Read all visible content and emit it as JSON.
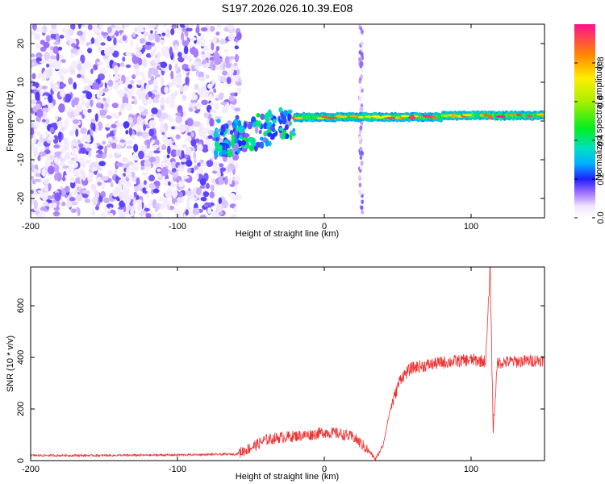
{
  "title": "S197.2026.026.10.39.E08",
  "chart_data": [
    {
      "type": "heatmap",
      "xlabel": "Height of straight line (km)",
      "ylabel": "Frequency (Hz)",
      "xlim": [
        -200,
        150
      ],
      "ylim": [
        -25,
        25
      ],
      "xticks": [
        -200,
        -100,
        0,
        100
      ],
      "yticks": [
        -20,
        -10,
        0,
        10,
        20
      ],
      "colorbar": {
        "label": "Normalized spectral amplitude",
        "range": [
          0,
          1
        ],
        "ticks": [
          0.0,
          0.2,
          0.4,
          0.6,
          0.8
        ]
      },
      "regions": [
        {
          "name": "noise",
          "x_range": [
            -200,
            -58
          ],
          "freq_range": [
            -25,
            25
          ],
          "amplitude": 0.1
        },
        {
          "name": "transition",
          "x_range": [
            -75,
            -20
          ],
          "freq_range": [
            -10,
            5
          ],
          "amplitude": 0.35
        },
        {
          "name": "signal-band",
          "x_range": [
            -20,
            150
          ],
          "freq_center": 1,
          "amplitude": 0.9
        },
        {
          "name": "vertical-stripe",
          "x_center": 25,
          "freq_range": [
            -25,
            25
          ],
          "amplitude": 0.1
        }
      ]
    },
    {
      "type": "line",
      "xlabel": "Height of straight line (km)",
      "ylabel": "SNR (10 * v/v)",
      "xlim": [
        -200,
        150
      ],
      "ylim": [
        0,
        750
      ],
      "xticks": [
        -200,
        -100,
        0,
        100
      ],
      "yticks": [
        0,
        200,
        400,
        600
      ],
      "series": [
        {
          "name": "SNR",
          "color": "#ee3333",
          "points": [
            [
              -200,
              20
            ],
            [
              -150,
              20
            ],
            [
              -100,
              22
            ],
            [
              -60,
              25
            ],
            [
              -50,
              50
            ],
            [
              -40,
              80
            ],
            [
              -30,
              90
            ],
            [
              -20,
              95
            ],
            [
              -10,
              100
            ],
            [
              0,
              110
            ],
            [
              10,
              105
            ],
            [
              20,
              90
            ],
            [
              30,
              40
            ],
            [
              35,
              5
            ],
            [
              40,
              60
            ],
            [
              45,
              200
            ],
            [
              52,
              320
            ],
            [
              60,
              360
            ],
            [
              80,
              380
            ],
            [
              100,
              390
            ],
            [
              110,
              385
            ],
            [
              113,
              750
            ],
            [
              115,
              120
            ],
            [
              118,
              380
            ],
            [
              150,
              390
            ]
          ]
        }
      ]
    }
  ]
}
